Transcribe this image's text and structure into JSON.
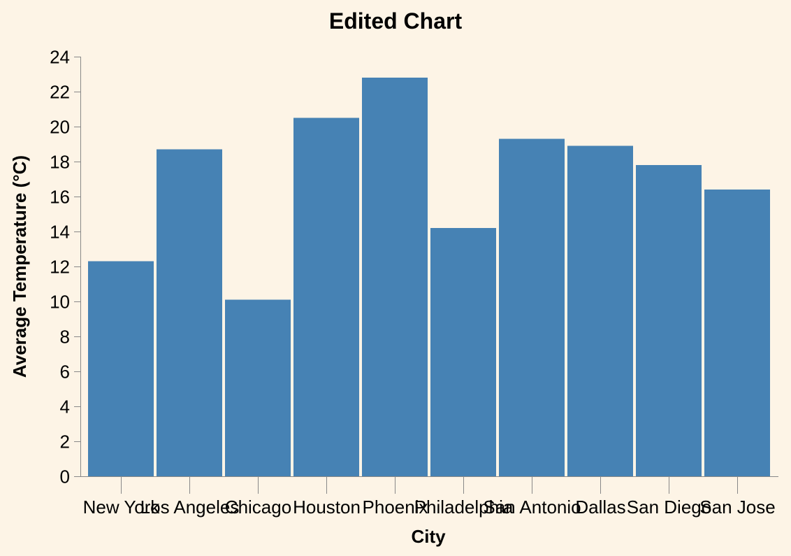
{
  "colors": {
    "background": "#fdf4e6",
    "bar": "#4682b4",
    "axis": "#888888"
  },
  "chart_data": {
    "type": "bar",
    "title": "Edited Chart",
    "xlabel": "City",
    "ylabel": "Average Temperature (°C)",
    "categories": [
      "New York",
      "Los Angeles",
      "Chicago",
      "Houston",
      "Phoenix",
      "Philadelphia",
      "San Antonio",
      "Dallas",
      "San Diego",
      "San Jose"
    ],
    "values": [
      12.3,
      18.7,
      10.1,
      20.5,
      22.8,
      14.2,
      19.3,
      18.9,
      17.8,
      16.4
    ],
    "ylim": [
      0,
      24
    ],
    "yticks": [
      0,
      2,
      4,
      6,
      8,
      10,
      12,
      14,
      16,
      18,
      20,
      22,
      24
    ],
    "grid": false,
    "legend": "none"
  }
}
